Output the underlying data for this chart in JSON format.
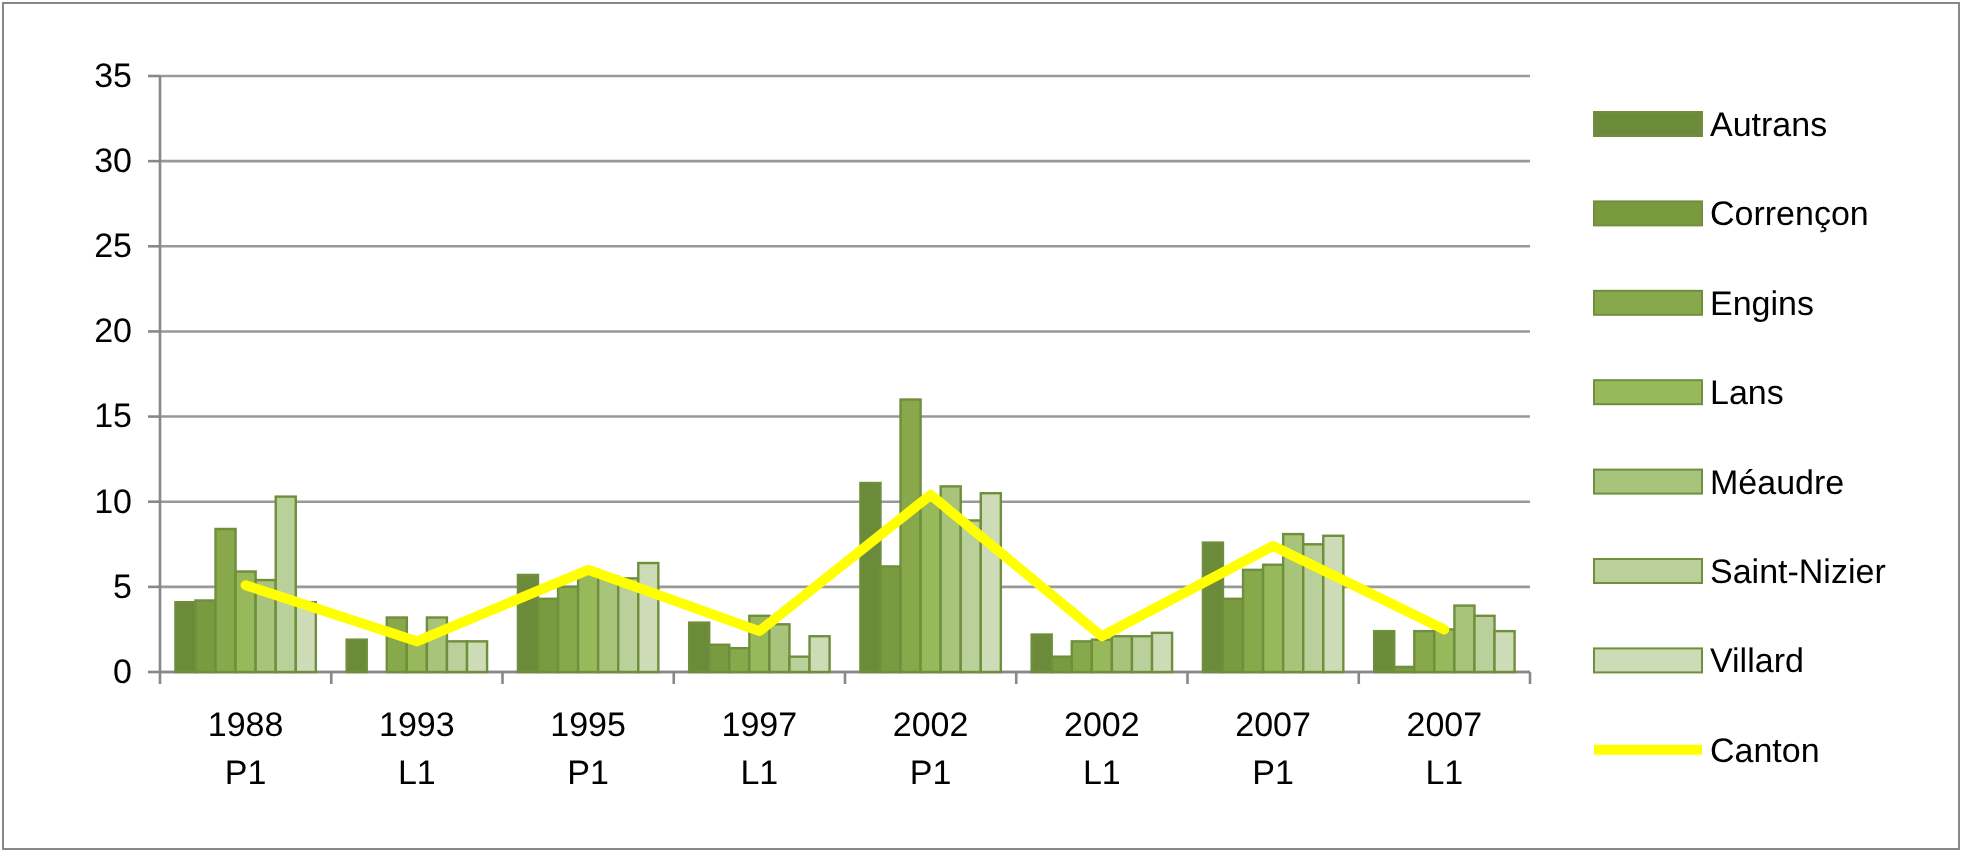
{
  "chart_data": {
    "type": "bar",
    "categories": [
      "1988\nP1",
      "1993\nL1",
      "1995\nP1",
      "1997\nL1",
      "2002\nP1",
      "2002\nL1",
      "2007\nP1",
      "2007\nL1"
    ],
    "series": [
      {
        "name": "Autrans",
        "color": "#6b8a3a",
        "values": [
          4.1,
          1.9,
          5.7,
          2.9,
          11.1,
          2.2,
          7.6,
          2.4
        ]
      },
      {
        "name": "Corrençon",
        "color": "#7a9a40",
        "values": [
          4.2,
          null,
          4.3,
          1.6,
          6.2,
          0.9,
          4.3,
          0.3
        ]
      },
      {
        "name": "Engins",
        "color": "#87a94b",
        "values": [
          8.4,
          3.2,
          5.0,
          1.4,
          16.0,
          1.8,
          6.0,
          2.4
        ]
      },
      {
        "name": "Lans",
        "color": "#98b85c",
        "values": [
          5.9,
          1.8,
          5.8,
          3.3,
          10.2,
          1.9,
          6.3,
          2.5
        ]
      },
      {
        "name": "Méaudre",
        "color": "#a8c47a",
        "values": [
          5.4,
          3.2,
          5.6,
          2.8,
          10.9,
          2.1,
          8.1,
          3.9
        ]
      },
      {
        "name": "Saint-Nizier",
        "color": "#bad09a",
        "values": [
          10.3,
          1.8,
          5.5,
          0.9,
          8.9,
          2.1,
          7.5,
          3.3
        ]
      },
      {
        "name": "Villard",
        "color": "#cddcb6",
        "values": [
          4.1,
          1.8,
          6.4,
          2.1,
          10.5,
          2.3,
          8.0,
          2.4
        ]
      },
      {
        "name": "Canton",
        "type": "line",
        "color": "#ffff00",
        "values": [
          5.1,
          1.8,
          6.0,
          2.4,
          10.4,
          2.1,
          7.4,
          2.5
        ]
      }
    ],
    "ylim": [
      0,
      35
    ],
    "yticks": [
      0,
      5,
      10,
      15,
      20,
      25,
      30,
      35
    ],
    "grid": "y",
    "legend": "right"
  }
}
